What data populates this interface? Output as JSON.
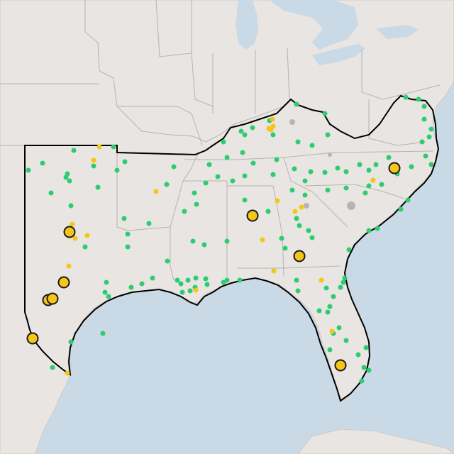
{
  "map": {
    "colors": {
      "water": "#c9d9e6",
      "land": "#e8e5e2",
      "border": "#b8b3ae",
      "region_outline": "#000000",
      "small_marker": "#2ecc71",
      "highlight_marker": "#f5c518",
      "marker_outline": "#1a1a1a"
    },
    "marker_types": [
      "green-dot",
      "yellow-dot",
      "large-yellow-circle"
    ]
  }
}
